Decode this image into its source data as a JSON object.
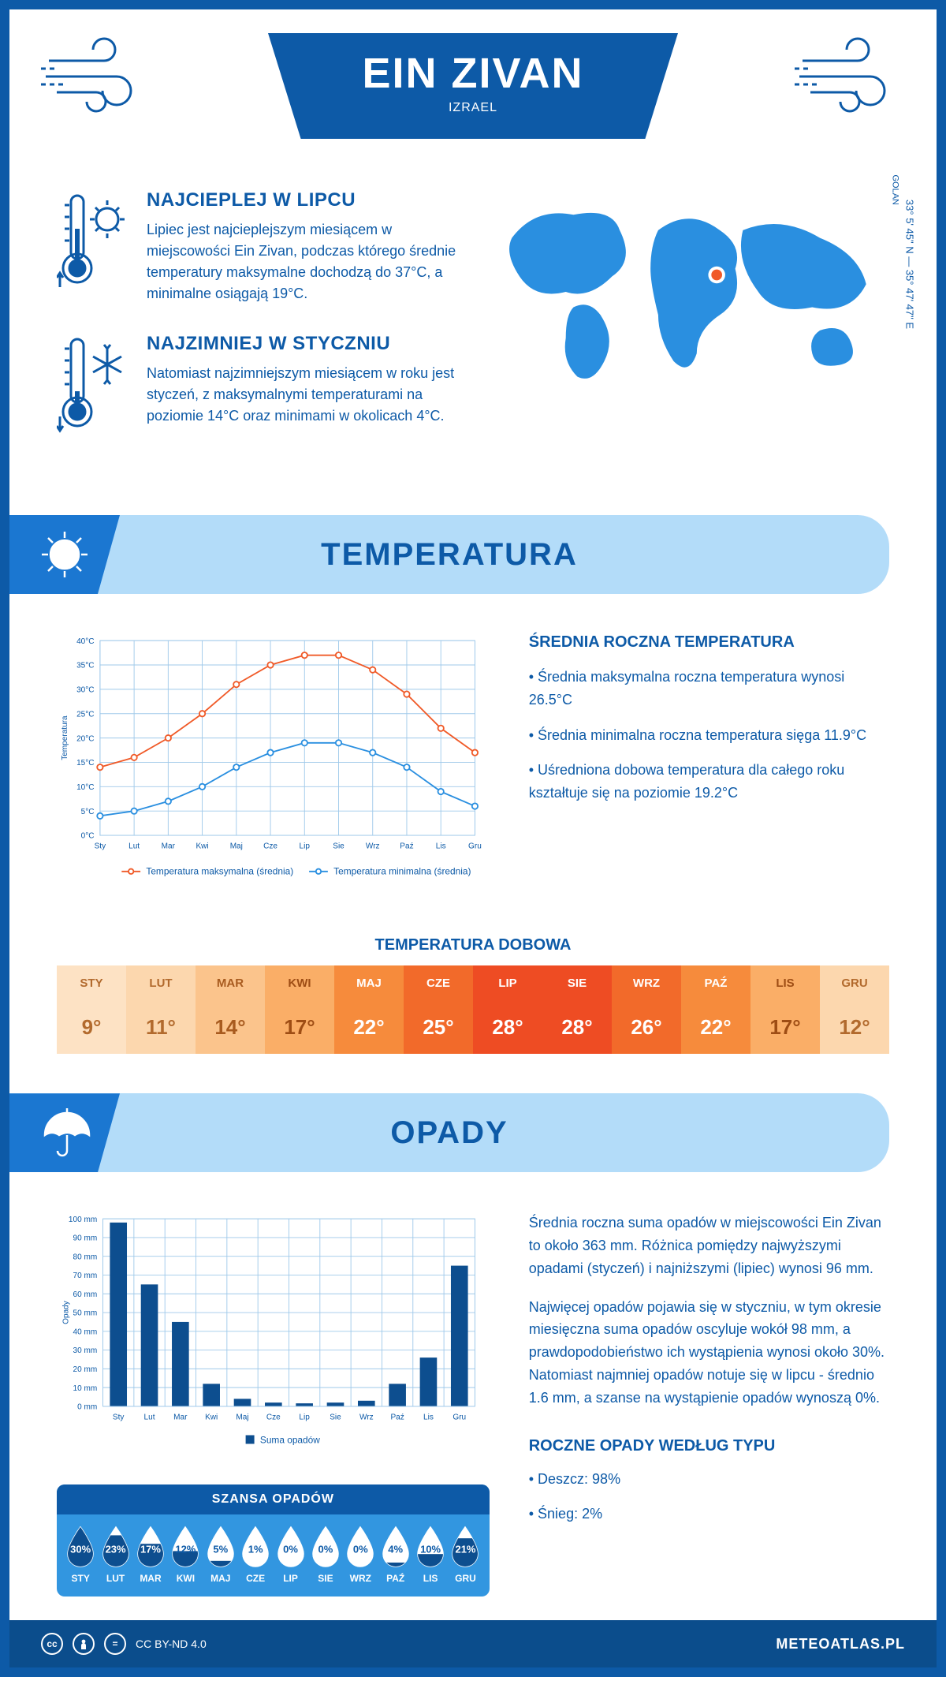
{
  "header": {
    "title": "EIN ZIVAN",
    "subtitle": "IZRAEL"
  },
  "coords": "33° 5' 45\" N — 35° 47' 47\" E",
  "region": "GOLAN",
  "facts": {
    "hot": {
      "title": "NAJCIEPLEJ W LIPCU",
      "text": "Lipiec jest najcieplejszym miesiącem w miejscowości Ein Zivan, podczas którego średnie temperatury maksymalne dochodzą do 37°C, a minimalne osiągają 19°C."
    },
    "cold": {
      "title": "NAJZIMNIEJ W STYCZNIU",
      "text": "Natomiast najzimniejszym miesiącem w roku jest styczeń, z maksymalnymi temperaturami na poziomie 14°C oraz minimami w okolicach 4°C."
    }
  },
  "temperature": {
    "section_title": "TEMPERATURA",
    "chart": {
      "type": "line",
      "months": [
        "Sty",
        "Lut",
        "Mar",
        "Kwi",
        "Maj",
        "Cze",
        "Lip",
        "Sie",
        "Wrz",
        "Paź",
        "Lis",
        "Gru"
      ],
      "series": [
        {
          "name": "Temperatura maksymalna (średnia)",
          "color": "#f05a28",
          "values": [
            14,
            16,
            20,
            25,
            31,
            35,
            37,
            37,
            34,
            29,
            22,
            17
          ]
        },
        {
          "name": "Temperatura minimalna (średnia)",
          "color": "#2a8fe0",
          "values": [
            4,
            5,
            7,
            10,
            14,
            17,
            19,
            19,
            17,
            14,
            9,
            6
          ]
        }
      ],
      "ylabel": "Temperatura",
      "ylim": [
        0,
        40
      ],
      "ytick_step": 5,
      "grid_color": "#9fc9ea",
      "background_color": "#ffffff",
      "line_width": 2,
      "marker": "circle",
      "marker_size": 4,
      "label_fontsize": 11
    },
    "info_title": "ŚREDNIA ROCZNA TEMPERATURA",
    "info_bullets": [
      "Średnia maksymalna roczna temperatura wynosi 26.5°C",
      "Średnia minimalna roczna temperatura sięga 11.9°C",
      "Uśredniona dobowa temperatura dla całego roku kształtuje się na poziomie 19.2°C"
    ],
    "daily_title": "TEMPERATURA DOBOWA",
    "daily": {
      "months": [
        "STY",
        "LUT",
        "MAR",
        "KWI",
        "MAJ",
        "CZE",
        "LIP",
        "SIE",
        "WRZ",
        "PAŹ",
        "LIS",
        "GRU"
      ],
      "values": [
        "9°",
        "11°",
        "14°",
        "17°",
        "22°",
        "25°",
        "28°",
        "28°",
        "26°",
        "22°",
        "17°",
        "12°"
      ],
      "bg_colors": [
        "#fde2c4",
        "#fcd7ae",
        "#fbc48c",
        "#faae67",
        "#f68b3c",
        "#f26a2a",
        "#ee4c23",
        "#ee4c23",
        "#f26a2a",
        "#f68b3c",
        "#faae67",
        "#fcd7ae"
      ],
      "text_colors": [
        "#b26a2d",
        "#b26a2d",
        "#a85b1f",
        "#9e4d14",
        "#ffffff",
        "#ffffff",
        "#ffffff",
        "#ffffff",
        "#ffffff",
        "#ffffff",
        "#9e4d14",
        "#b26a2d"
      ]
    }
  },
  "precipitation": {
    "section_title": "OPADY",
    "chart": {
      "type": "bar",
      "months": [
        "Sty",
        "Lut",
        "Mar",
        "Kwi",
        "Maj",
        "Cze",
        "Lip",
        "Sie",
        "Wrz",
        "Paź",
        "Lis",
        "Gru"
      ],
      "values": [
        98,
        65,
        45,
        12,
        4,
        2,
        1.6,
        2,
        3,
        12,
        26,
        75
      ],
      "bar_color": "#0d4e8f",
      "ylabel": "Opady",
      "ylim": [
        0,
        100
      ],
      "ytick_step": 10,
      "grid_color": "#9fc9ea",
      "background_color": "#ffffff",
      "bar_width": 0.55,
      "legend_label": "Suma opadów",
      "label_fontsize": 11
    },
    "paragraphs": [
      "Średnia roczna suma opadów w miejscowości Ein Zivan to około 363 mm. Różnica pomiędzy najwyższymi opadami (styczeń) i najniższymi (lipiec) wynosi 96 mm.",
      "Najwięcej opadów pojawia się w styczniu, w tym okresie miesięczna suma opadów oscyluje wokół 98 mm, a prawdopodobieństwo ich wystąpienia wynosi około 30%. Natomiast najmniej opadów notuje się w lipcu - średnio 1.6 mm, a szanse na wystąpienie opadów wynoszą 0%."
    ],
    "chance_title": "SZANSA OPADÓW",
    "chance": {
      "months": [
        "STY",
        "LUT",
        "MAR",
        "KWI",
        "MAJ",
        "CZE",
        "LIP",
        "SIE",
        "WRZ",
        "PAŹ",
        "LIS",
        "GRU"
      ],
      "values": [
        "30%",
        "23%",
        "17%",
        "12%",
        "5%",
        "1%",
        "0%",
        "0%",
        "0%",
        "4%",
        "10%",
        "21%"
      ],
      "fill_pct": [
        100,
        77,
        57,
        40,
        17,
        3,
        0,
        0,
        0,
        13,
        33,
        70
      ],
      "drop_fill": "#0d4e8f",
      "drop_empty": "#ffffff",
      "drop_stroke": "#ffffff"
    },
    "type_title": "ROCZNE OPADY WEDŁUG TYPU",
    "type_bullets": [
      "Deszcz: 98%",
      "Śnieg: 2%"
    ]
  },
  "footer": {
    "license": "CC BY-ND 4.0",
    "brand": "METEOATLAS.PL"
  },
  "colors": {
    "primary": "#0d5aa7",
    "light_blue": "#b3dcf9",
    "mid_blue": "#3296e0",
    "dark_blue": "#0b4d8c"
  }
}
